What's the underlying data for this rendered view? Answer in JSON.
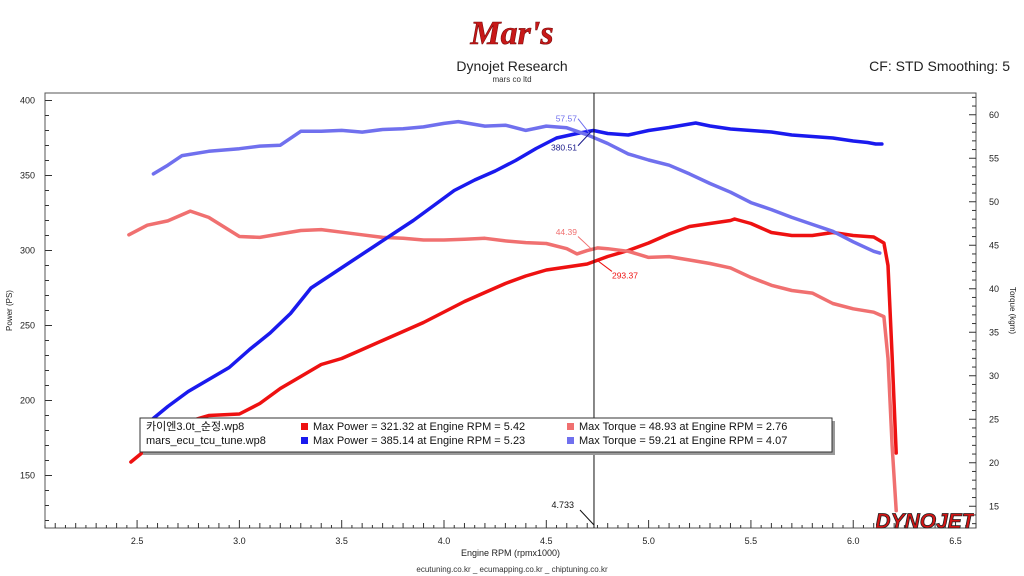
{
  "logo_text": "Mar's",
  "title": "Dynojet Research",
  "subtitle": "mars co ltd",
  "cf_info": "CF: STD Smoothing: 5",
  "footer": "ecutuning.co.kr _ ecumapping.co.kr _ chiptuning.co.kr",
  "brand": "DYNOJET",
  "chart_data": {
    "type": "line",
    "xlabel": "Engine RPM (rpmx1000)",
    "ylabel_left": "Power (PS)",
    "ylabel_right": "Torque (kgm)",
    "xlim": [
      2.05,
      6.6
    ],
    "ylim_left": [
      115,
      405
    ],
    "ylim_right": [
      12.5,
      62.5
    ],
    "x_ticks": [
      2.5,
      3.0,
      3.5,
      4.0,
      4.5,
      5.0,
      5.5,
      6.0,
      6.5
    ],
    "x_tick_labels": [
      "2.5",
      "3.0",
      "3.5",
      "4.0",
      "4.5",
      "5.0",
      "5.5",
      "6.0",
      "6.5"
    ],
    "y_left_ticks": [
      150,
      200,
      250,
      300,
      350,
      400
    ],
    "y_right_ticks": [
      15,
      20,
      25,
      30,
      35,
      40,
      45,
      50,
      55,
      60
    ],
    "grid": false,
    "cursor": {
      "x": 4.733,
      "x_label": "4.733",
      "power_label": "380.51",
      "torque_label": "57.57",
      "power_label2": "293.37",
      "torque_label2": "44.39"
    },
    "series": [
      {
        "file": "카이엔3.0t_순정.wp8",
        "name": "Max Power = 321.32 at Engine RPM = 5.42",
        "quantity": "power",
        "axis": "left",
        "color": "#ee1111",
        "x": [
          2.47,
          2.55,
          2.65,
          2.75,
          2.85,
          3.0,
          3.1,
          3.2,
          3.3,
          3.4,
          3.5,
          3.6,
          3.7,
          3.8,
          3.9,
          4.0,
          4.1,
          4.2,
          4.3,
          4.4,
          4.5,
          4.6,
          4.7,
          4.8,
          4.9,
          5.0,
          5.1,
          5.2,
          5.3,
          5.4,
          5.42,
          5.5,
          5.6,
          5.7,
          5.8,
          5.9,
          6.0,
          6.1,
          6.15,
          6.17,
          6.19,
          6.21
        ],
        "y": [
          159,
          168,
          178,
          186,
          190,
          191,
          198,
          208,
          216,
          224,
          228,
          234,
          240,
          246,
          252,
          259,
          266,
          272,
          278,
          283,
          287,
          289,
          291,
          296,
          300,
          305,
          311,
          316,
          318,
          320,
          321,
          318,
          312,
          310,
          310,
          312,
          310,
          309,
          305,
          290,
          230,
          165
        ]
      },
      {
        "file": "카이엔3.0t_순정.wp8",
        "name": "Max Torque = 48.93 at Engine RPM = 2.76",
        "quantity": "torque",
        "axis": "right",
        "color": "#f07070",
        "x": [
          2.46,
          2.55,
          2.65,
          2.76,
          2.85,
          3.0,
          3.1,
          3.2,
          3.3,
          3.4,
          3.5,
          3.6,
          3.7,
          3.8,
          3.9,
          4.0,
          4.1,
          4.2,
          4.3,
          4.4,
          4.5,
          4.6,
          4.65,
          4.7,
          4.75,
          4.8,
          4.9,
          5.0,
          5.1,
          5.2,
          5.3,
          5.4,
          5.5,
          5.6,
          5.7,
          5.8,
          5.9,
          6.0,
          6.1,
          6.15,
          6.17,
          6.19,
          6.21
        ],
        "y": [
          46.2,
          47.3,
          47.8,
          48.93,
          48.2,
          46.0,
          45.9,
          46.3,
          46.7,
          46.8,
          46.5,
          46.2,
          45.9,
          45.8,
          45.6,
          45.6,
          45.7,
          45.8,
          45.5,
          45.3,
          45.2,
          44.6,
          44.0,
          44.39,
          44.7,
          44.6,
          44.3,
          43.6,
          43.7,
          43.3,
          42.9,
          42.4,
          41.3,
          40.4,
          39.8,
          39.5,
          38.3,
          37.7,
          37.3,
          36.8,
          32.0,
          22.0,
          14.5
        ]
      },
      {
        "file": "mars_ecu_tcu_tune.wp8",
        "name": "Max Power = 385.14 at Engine RPM = 5.23",
        "quantity": "power",
        "axis": "left",
        "color": "#1a1aee",
        "x": [
          2.57,
          2.65,
          2.75,
          2.85,
          2.95,
          3.05,
          3.15,
          3.25,
          3.35,
          3.45,
          3.55,
          3.65,
          3.75,
          3.85,
          3.95,
          4.05,
          4.15,
          4.25,
          4.35,
          4.45,
          4.55,
          4.65,
          4.73,
          4.8,
          4.9,
          5.0,
          5.1,
          5.23,
          5.3,
          5.4,
          5.5,
          5.6,
          5.7,
          5.8,
          5.9,
          6.0,
          6.07,
          6.11,
          6.14
        ],
        "y": [
          187,
          196,
          206,
          214,
          222,
          234,
          245,
          258,
          275,
          284,
          293,
          302,
          311,
          320,
          330,
          340,
          347,
          353,
          360,
          368,
          375,
          378,
          380,
          378,
          377,
          380,
          382,
          385,
          383,
          381,
          380,
          379,
          377,
          376,
          375,
          373,
          372,
          371,
          371
        ]
      },
      {
        "file": "mars_ecu_tcu_tune.wp8",
        "name": "Max Torque = 59.21 at Engine RPM = 4.07",
        "quantity": "torque",
        "axis": "right",
        "color": "#7070ee",
        "x": [
          2.58,
          2.65,
          2.72,
          2.85,
          3.0,
          3.1,
          3.2,
          3.3,
          3.4,
          3.5,
          3.6,
          3.7,
          3.8,
          3.9,
          4.0,
          4.07,
          4.2,
          4.3,
          4.4,
          4.5,
          4.6,
          4.7,
          4.8,
          4.9,
          5.0,
          5.1,
          5.2,
          5.3,
          5.4,
          5.5,
          5.6,
          5.7,
          5.8,
          5.9,
          6.0,
          6.1,
          6.13
        ],
        "y": [
          53.2,
          54.2,
          55.3,
          55.8,
          56.1,
          56.4,
          56.5,
          58.1,
          58.1,
          58.2,
          58.0,
          58.3,
          58.4,
          58.6,
          59.0,
          59.21,
          58.7,
          58.8,
          58.2,
          58.7,
          58.5,
          57.7,
          56.7,
          55.5,
          54.8,
          54.2,
          53.2,
          52.1,
          51.1,
          49.9,
          49.1,
          48.2,
          47.4,
          46.6,
          45.4,
          44.3,
          44.1
        ]
      }
    ]
  }
}
